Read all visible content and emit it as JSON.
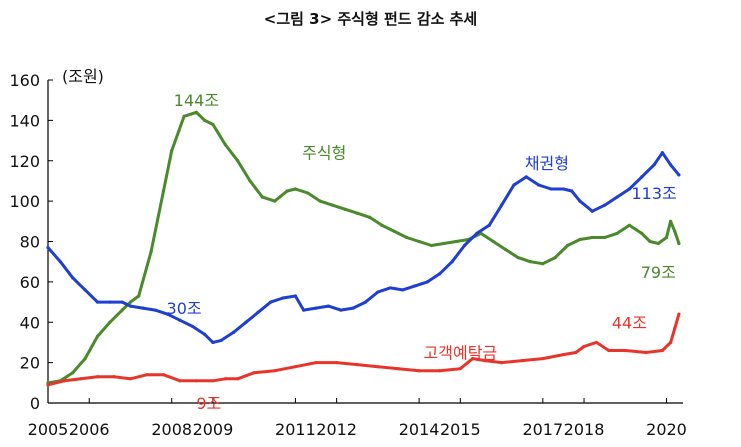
{
  "chart_data": {
    "type": "line",
    "title": "<그림 3> 주식형 펀드 감소 추세",
    "unit_label": "(조원)",
    "ylim": [
      0,
      160
    ],
    "y_ticks": [
      0,
      20,
      40,
      60,
      80,
      100,
      120,
      140,
      160
    ],
    "x_range": [
      2005.0,
      2020.4
    ],
    "x_ticks": [
      2005,
      2006,
      2008,
      2009,
      2011,
      2012,
      2014,
      2015,
      2017,
      2018,
      2020
    ],
    "x_tick_labels": [
      "2005",
      "2006",
      "2008",
      "2009",
      "2011",
      "2012",
      "2014",
      "2015",
      "2017",
      "2018",
      "2020"
    ],
    "grid": false,
    "series": [
      {
        "name": "주식형",
        "color": "#4a8a2c",
        "x": [
          2005.0,
          2005.3,
          2005.6,
          2005.9,
          2006.2,
          2006.5,
          2006.8,
          2007.0,
          2007.2,
          2007.5,
          2007.8,
          2008.0,
          2008.3,
          2008.6,
          2008.8,
          2009.0,
          2009.3,
          2009.6,
          2009.9,
          2010.2,
          2010.5,
          2010.8,
          2011.0,
          2011.3,
          2011.6,
          2011.9,
          2012.2,
          2012.5,
          2012.8,
          2013.1,
          2013.4,
          2013.7,
          2014.0,
          2014.3,
          2014.6,
          2014.9,
          2015.2,
          2015.5,
          2015.8,
          2016.1,
          2016.4,
          2016.7,
          2017.0,
          2017.3,
          2017.6,
          2017.9,
          2018.2,
          2018.5,
          2018.8,
          2019.1,
          2019.4,
          2019.6,
          2019.8,
          2020.0,
          2020.1,
          2020.2,
          2020.3
        ],
        "values": [
          10,
          11,
          15,
          22,
          33,
          40,
          46,
          50,
          53,
          75,
          105,
          125,
          142,
          144,
          140,
          138,
          128,
          120,
          110,
          102,
          100,
          105,
          106,
          104,
          100,
          98,
          96,
          94,
          92,
          88,
          85,
          82,
          80,
          78,
          79,
          80,
          81,
          84,
          80,
          76,
          72,
          70,
          69,
          72,
          78,
          81,
          82,
          82,
          84,
          88,
          84,
          80,
          79,
          82,
          90,
          85,
          79
        ]
      },
      {
        "name": "채권형",
        "color": "#1f3fd0",
        "x": [
          2005.0,
          2005.3,
          2005.6,
          2005.9,
          2006.2,
          2006.5,
          2006.8,
          2007.0,
          2007.3,
          2007.6,
          2007.9,
          2008.2,
          2008.5,
          2008.8,
          2009.0,
          2009.2,
          2009.5,
          2009.8,
          2010.1,
          2010.4,
          2010.7,
          2011.0,
          2011.2,
          2011.5,
          2011.8,
          2012.1,
          2012.4,
          2012.7,
          2013.0,
          2013.3,
          2013.6,
          2013.9,
          2014.2,
          2014.5,
          2014.8,
          2015.1,
          2015.4,
          2015.7,
          2016.0,
          2016.3,
          2016.6,
          2016.9,
          2017.2,
          2017.5,
          2017.7,
          2017.9,
          2018.2,
          2018.5,
          2018.8,
          2019.1,
          2019.4,
          2019.7,
          2019.9,
          2020.1,
          2020.3
        ],
        "values": [
          77,
          70,
          62,
          56,
          50,
          50,
          50,
          48,
          47,
          46,
          44,
          41,
          38,
          34,
          30,
          31,
          35,
          40,
          45,
          50,
          52,
          53,
          46,
          47,
          48,
          46,
          47,
          50,
          55,
          57,
          56,
          58,
          60,
          64,
          70,
          78,
          84,
          88,
          98,
          108,
          112,
          108,
          106,
          106,
          105,
          100,
          95,
          98,
          102,
          106,
          112,
          118,
          124,
          118,
          113
        ]
      },
      {
        "name": "고객예탁금",
        "color": "#e8352b",
        "x": [
          2005.0,
          2005.4,
          2005.8,
          2006.2,
          2006.6,
          2007.0,
          2007.4,
          2007.8,
          2008.2,
          2008.6,
          2009.0,
          2009.3,
          2009.6,
          2010.0,
          2010.5,
          2011.0,
          2011.5,
          2012.0,
          2012.5,
          2013.0,
          2013.5,
          2014.0,
          2014.5,
          2015.0,
          2015.3,
          2015.6,
          2016.0,
          2016.5,
          2017.0,
          2017.5,
          2017.8,
          2018.0,
          2018.3,
          2018.6,
          2019.0,
          2019.5,
          2019.9,
          2020.1,
          2020.2,
          2020.3
        ],
        "values": [
          9,
          11,
          12,
          13,
          13,
          12,
          14,
          14,
          11,
          11,
          11,
          12,
          12,
          15,
          16,
          18,
          20,
          20,
          19,
          18,
          17,
          16,
          16,
          17,
          22,
          21,
          20,
          21,
          22,
          24,
          25,
          28,
          30,
          26,
          26,
          25,
          26,
          30,
          37,
          44
        ]
      }
    ],
    "annotations": [
      {
        "text": "144조",
        "color": "#4a8a2c",
        "x": 2008.6,
        "y": 150
      },
      {
        "text": "주식형",
        "color": "#4a8a2c",
        "x": 2011.7,
        "y": 124
      },
      {
        "text": "채권형",
        "color": "#1f3fd0",
        "x": 2017.1,
        "y": 119
      },
      {
        "text": "113조",
        "color": "#1f3fd0",
        "x": 2019.7,
        "y": 104
      },
      {
        "text": "79조",
        "color": "#4a8a2c",
        "x": 2019.8,
        "y": 65
      },
      {
        "text": "30조",
        "color": "#1f3fd0",
        "x": 2008.3,
        "y": 47
      },
      {
        "text": "44조",
        "color": "#e8352b",
        "x": 2019.1,
        "y": 40
      },
      {
        "text": "고객예탁금",
        "color": "#e8352b",
        "x": 2015.0,
        "y": 25
      },
      {
        "text": "9조",
        "color": "#e8352b",
        "x": 2008.9,
        "y": 0
      }
    ]
  }
}
